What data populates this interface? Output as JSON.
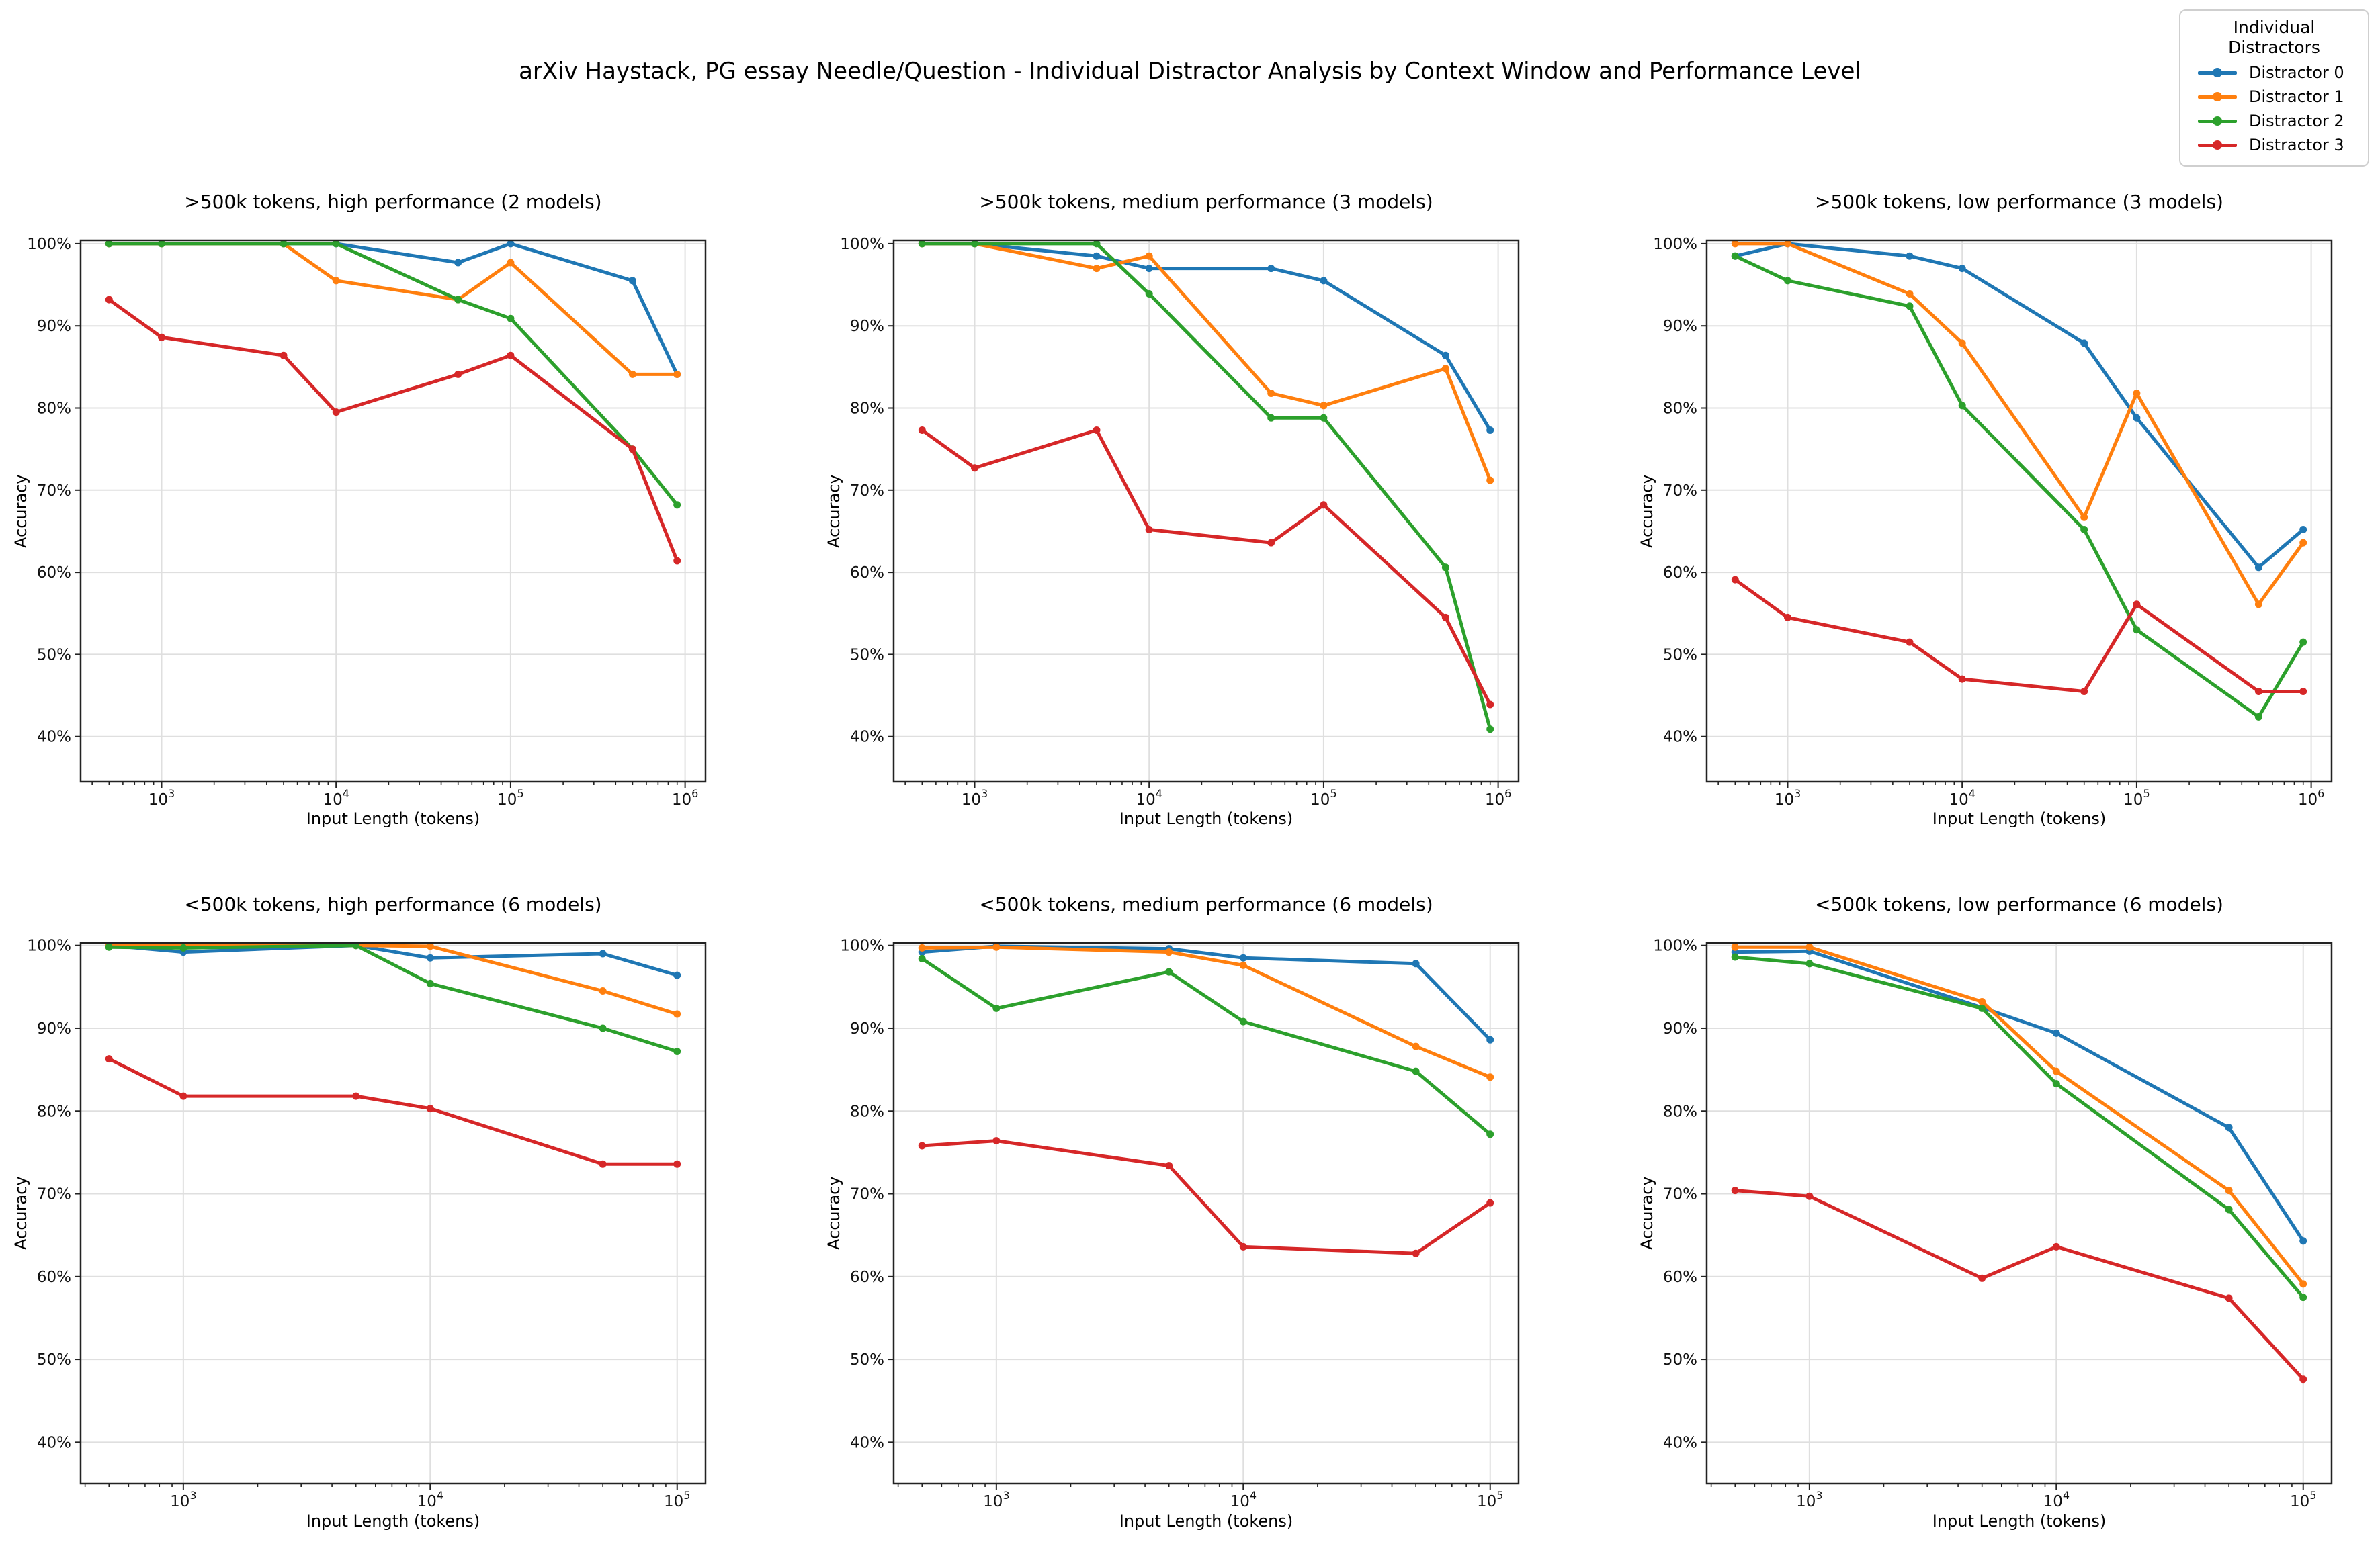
{
  "figure_title": "arXiv Haystack, PG essay Needle/Question - Individual Distractor Analysis by Context Window and Performance Level",
  "legend": {
    "title": "Individual Distractors",
    "entries": [
      {
        "label": "Distractor 0",
        "color": "#1f77b4"
      },
      {
        "label": "Distractor 1",
        "color": "#ff7f0e"
      },
      {
        "label": "Distractor 2",
        "color": "#2ca02c"
      },
      {
        "label": "Distractor 3",
        "color": "#d62728"
      }
    ]
  },
  "chart_data": [
    {
      "type": "line",
      "title": ">500k tokens, high performance (2 models)",
      "xlabel": "Input Length (tokens)",
      "ylabel": "Accuracy",
      "x_scale": "log",
      "x": [
        500,
        1000,
        5000,
        10000,
        50000,
        100000,
        500000,
        900000
      ],
      "series": [
        {
          "name": "Distractor 0",
          "color": "#1f77b4",
          "values": [
            100,
            100,
            100,
            100,
            97.7,
            100,
            95.5,
            84.1
          ]
        },
        {
          "name": "Distractor 1",
          "color": "#ff7f0e",
          "values": [
            100,
            100,
            100,
            95.5,
            93.2,
            97.7,
            84.1,
            84.1
          ]
        },
        {
          "name": "Distractor 2",
          "color": "#2ca02c",
          "values": [
            100,
            100,
            100,
            100,
            93.2,
            90.9,
            75.0,
            68.2
          ]
        },
        {
          "name": "Distractor 3",
          "color": "#d62728",
          "values": [
            93.2,
            88.6,
            86.4,
            79.5,
            84.1,
            86.4,
            75.0,
            61.4
          ]
        }
      ],
      "ylim": [
        34.5,
        100.4
      ],
      "xlim_log10": [
        2.536,
        6.117
      ],
      "x_ticks": [
        {
          "base": "10",
          "exp": "3"
        },
        {
          "base": "10",
          "exp": "4"
        },
        {
          "base": "10",
          "exp": "5"
        },
        {
          "base": "10",
          "exp": "6"
        }
      ],
      "y_ticks": [
        {
          "value": 40,
          "label": "40%"
        },
        {
          "value": 50,
          "label": "50%"
        },
        {
          "value": 60,
          "label": "60%"
        },
        {
          "value": 70,
          "label": "70%"
        },
        {
          "value": 80,
          "label": "80%"
        },
        {
          "value": 90,
          "label": "90%"
        },
        {
          "value": 100,
          "label": "100%"
        }
      ]
    },
    {
      "type": "line",
      "title": ">500k tokens, medium performance (3 models)",
      "xlabel": "Input Length (tokens)",
      "ylabel": "Accuracy",
      "x_scale": "log",
      "x": [
        500,
        1000,
        5000,
        10000,
        50000,
        100000,
        500000,
        900000
      ],
      "series": [
        {
          "name": "Distractor 0",
          "color": "#1f77b4",
          "values": [
            100,
            100,
            98.5,
            97.0,
            97.0,
            95.5,
            86.4,
            77.3
          ]
        },
        {
          "name": "Distractor 1",
          "color": "#ff7f0e",
          "values": [
            100,
            100,
            97.0,
            98.5,
            81.8,
            80.3,
            84.8,
            71.2
          ]
        },
        {
          "name": "Distractor 2",
          "color": "#2ca02c",
          "values": [
            100,
            100,
            100,
            93.9,
            78.8,
            78.8,
            60.6,
            40.9
          ]
        },
        {
          "name": "Distractor 3",
          "color": "#d62728",
          "values": [
            77.3,
            72.7,
            77.3,
            65.2,
            63.6,
            68.2,
            54.5,
            43.9
          ]
        }
      ],
      "ylim": [
        34.5,
        100.4
      ],
      "xlim_log10": [
        2.536,
        6.117
      ],
      "x_ticks": [
        {
          "base": "10",
          "exp": "3"
        },
        {
          "base": "10",
          "exp": "4"
        },
        {
          "base": "10",
          "exp": "5"
        },
        {
          "base": "10",
          "exp": "6"
        }
      ],
      "y_ticks": [
        {
          "value": 40,
          "label": "40%"
        },
        {
          "value": 50,
          "label": "50%"
        },
        {
          "value": 60,
          "label": "60%"
        },
        {
          "value": 70,
          "label": "70%"
        },
        {
          "value": 80,
          "label": "80%"
        },
        {
          "value": 90,
          "label": "90%"
        },
        {
          "value": 100,
          "label": "100%"
        }
      ]
    },
    {
      "type": "line",
      "title": ">500k tokens, low performance (3 models)",
      "xlabel": "Input Length (tokens)",
      "ylabel": "Accuracy",
      "x_scale": "log",
      "x": [
        500,
        1000,
        5000,
        10000,
        50000,
        100000,
        500000,
        900000
      ],
      "series": [
        {
          "name": "Distractor 0",
          "color": "#1f77b4",
          "values": [
            98.5,
            100,
            98.5,
            97.0,
            87.9,
            78.8,
            60.6,
            65.2
          ]
        },
        {
          "name": "Distractor 1",
          "color": "#ff7f0e",
          "values": [
            100,
            100,
            93.9,
            87.9,
            66.7,
            81.8,
            56.1,
            63.6
          ]
        },
        {
          "name": "Distractor 2",
          "color": "#2ca02c",
          "values": [
            98.5,
            95.5,
            92.4,
            80.3,
            65.2,
            53.0,
            42.4,
            51.5
          ]
        },
        {
          "name": "Distractor 3",
          "color": "#d62728",
          "values": [
            59.1,
            54.5,
            51.5,
            47.0,
            45.5,
            56.1,
            45.5,
            45.5
          ]
        }
      ],
      "ylim": [
        34.5,
        100.4
      ],
      "xlim_log10": [
        2.536,
        6.117
      ],
      "x_ticks": [
        {
          "base": "10",
          "exp": "3"
        },
        {
          "base": "10",
          "exp": "4"
        },
        {
          "base": "10",
          "exp": "5"
        },
        {
          "base": "10",
          "exp": "6"
        }
      ],
      "y_ticks": [
        {
          "value": 40,
          "label": "40%"
        },
        {
          "value": 50,
          "label": "50%"
        },
        {
          "value": 60,
          "label": "60%"
        },
        {
          "value": 70,
          "label": "70%"
        },
        {
          "value": 80,
          "label": "80%"
        },
        {
          "value": 90,
          "label": "90%"
        },
        {
          "value": 100,
          "label": "100%"
        }
      ]
    },
    {
      "type": "line",
      "title": "<500k tokens, high performance (6 models)",
      "xlabel": "Input Length (tokens)",
      "ylabel": "Accuracy",
      "x_scale": "log",
      "x": [
        500,
        1000,
        5000,
        10000,
        50000,
        100000
      ],
      "series": [
        {
          "name": "Distractor 0",
          "color": "#1f77b4",
          "values": [
            100,
            99.2,
            100,
            98.5,
            99.0,
            96.4
          ]
        },
        {
          "name": "Distractor 1",
          "color": "#ff7f0e",
          "values": [
            100,
            100,
            100,
            99.9,
            94.5,
            91.7
          ]
        },
        {
          "name": "Distractor 2",
          "color": "#2ca02c",
          "values": [
            99.8,
            99.7,
            100,
            95.4,
            90.0,
            87.2
          ]
        },
        {
          "name": "Distractor 3",
          "color": "#d62728",
          "values": [
            86.3,
            81.8,
            81.8,
            80.3,
            73.6,
            73.6
          ]
        }
      ],
      "ylim": [
        35.0,
        100.3
      ],
      "xlim_log10": [
        2.584,
        5.115
      ],
      "x_ticks": [
        {
          "base": "10",
          "exp": "3"
        },
        {
          "base": "10",
          "exp": "4"
        },
        {
          "base": "10",
          "exp": "5"
        }
      ],
      "y_ticks": [
        {
          "value": 40,
          "label": "40%"
        },
        {
          "value": 50,
          "label": "50%"
        },
        {
          "value": 60,
          "label": "60%"
        },
        {
          "value": 70,
          "label": "70%"
        },
        {
          "value": 80,
          "label": "80%"
        },
        {
          "value": 90,
          "label": "90%"
        },
        {
          "value": 100,
          "label": "100%"
        }
      ]
    },
    {
      "type": "line",
      "title": "<500k tokens, medium performance (6 models)",
      "xlabel": "Input Length (tokens)",
      "ylabel": "Accuracy",
      "x_scale": "log",
      "x": [
        500,
        1000,
        5000,
        10000,
        50000,
        100000
      ],
      "series": [
        {
          "name": "Distractor 0",
          "color": "#1f77b4",
          "values": [
            99.2,
            99.9,
            99.6,
            98.5,
            97.8,
            88.6
          ]
        },
        {
          "name": "Distractor 1",
          "color": "#ff7f0e",
          "values": [
            99.7,
            99.8,
            99.2,
            97.6,
            87.8,
            84.1
          ]
        },
        {
          "name": "Distractor 2",
          "color": "#2ca02c",
          "values": [
            98.4,
            92.4,
            96.8,
            90.8,
            84.8,
            77.2
          ]
        },
        {
          "name": "Distractor 3",
          "color": "#d62728",
          "values": [
            75.8,
            76.4,
            73.4,
            63.6,
            62.8,
            68.9
          ]
        }
      ],
      "ylim": [
        35.0,
        100.3
      ],
      "xlim_log10": [
        2.584,
        5.115
      ],
      "x_ticks": [
        {
          "base": "10",
          "exp": "3"
        },
        {
          "base": "10",
          "exp": "4"
        },
        {
          "base": "10",
          "exp": "5"
        }
      ],
      "y_ticks": [
        {
          "value": 40,
          "label": "40%"
        },
        {
          "value": 50,
          "label": "50%"
        },
        {
          "value": 60,
          "label": "60%"
        },
        {
          "value": 70,
          "label": "70%"
        },
        {
          "value": 80,
          "label": "80%"
        },
        {
          "value": 90,
          "label": "90%"
        },
        {
          "value": 100,
          "label": "100%"
        }
      ]
    },
    {
      "type": "line",
      "title": "<500k tokens, low performance (6 models)",
      "xlabel": "Input Length (tokens)",
      "ylabel": "Accuracy",
      "x_scale": "log",
      "x": [
        500,
        1000,
        5000,
        10000,
        50000,
        100000
      ],
      "series": [
        {
          "name": "Distractor 0",
          "color": "#1f77b4",
          "values": [
            99.2,
            99.3,
            92.5,
            89.4,
            78.0,
            64.3
          ]
        },
        {
          "name": "Distractor 1",
          "color": "#ff7f0e",
          "values": [
            99.8,
            99.8,
            93.2,
            84.8,
            70.4,
            59.1
          ]
        },
        {
          "name": "Distractor 2",
          "color": "#2ca02c",
          "values": [
            98.6,
            97.8,
            92.4,
            83.3,
            68.1,
            57.5
          ]
        },
        {
          "name": "Distractor 3",
          "color": "#d62728",
          "values": [
            70.4,
            69.7,
            59.8,
            63.6,
            57.4,
            47.6
          ]
        }
      ],
      "ylim": [
        35.0,
        100.3
      ],
      "xlim_log10": [
        2.584,
        5.115
      ],
      "x_ticks": [
        {
          "base": "10",
          "exp": "3"
        },
        {
          "base": "10",
          "exp": "4"
        },
        {
          "base": "10",
          "exp": "5"
        }
      ],
      "y_ticks": [
        {
          "value": 40,
          "label": "40%"
        },
        {
          "value": 50,
          "label": "50%"
        },
        {
          "value": 60,
          "label": "60%"
        },
        {
          "value": 70,
          "label": "70%"
        },
        {
          "value": 80,
          "label": "80%"
        },
        {
          "value": 90,
          "label": "90%"
        },
        {
          "value": 100,
          "label": "100%"
        }
      ]
    }
  ]
}
